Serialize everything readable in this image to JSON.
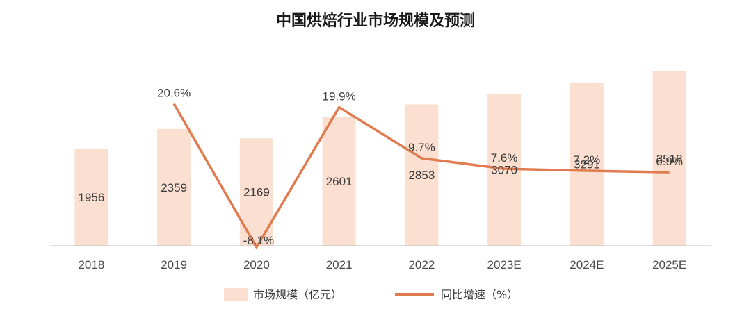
{
  "chart_data": {
    "type": "bar",
    "title": "中国烘焙行业市场规模及预测",
    "categories": [
      "2018",
      "2019",
      "2020",
      "2021",
      "2022",
      "2023E",
      "2024E",
      "2025E"
    ],
    "series": [
      {
        "name": "市场规模（亿元）",
        "type": "bar",
        "values": [
          1956,
          2359,
          2169,
          2601,
          2853,
          3070,
          3291,
          3518
        ],
        "color": "#fbe0d2"
      },
      {
        "name": "同比增速（%）",
        "type": "line",
        "values": [
          null,
          20.6,
          -8.1,
          19.9,
          9.7,
          7.6,
          7.2,
          6.9
        ],
        "labels": [
          "",
          "20.6%",
          "-8.1%",
          "19.9%",
          "9.7%",
          "7.6%",
          "7.2%",
          "6.9%"
        ],
        "color": "#e07b4f"
      }
    ],
    "bar_ylim": [
      0,
      3600
    ],
    "line_ylim": [
      -10,
      25
    ],
    "legend_position": "bottom",
    "grid": false
  }
}
